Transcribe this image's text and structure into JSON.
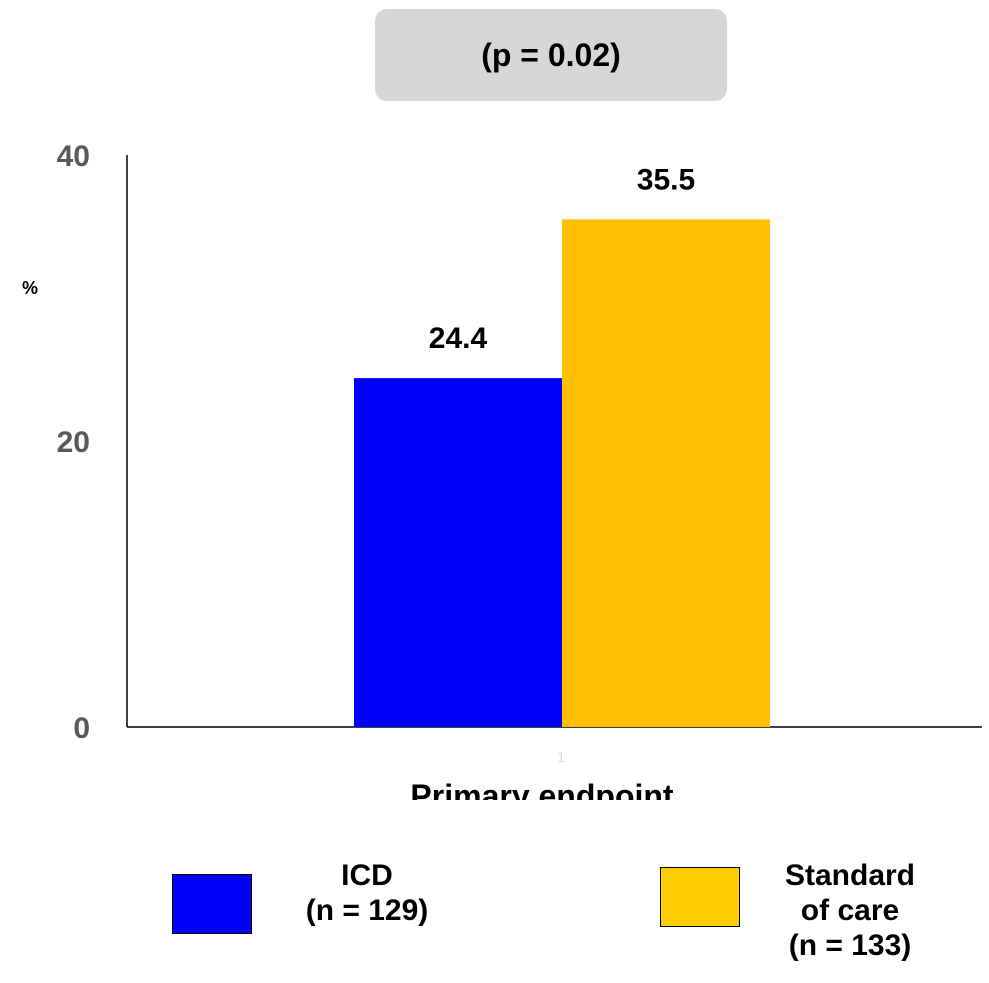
{
  "annotation": "(p = 0.02)",
  "chart_data": {
    "type": "bar",
    "categories": [
      "1"
    ],
    "xlabel": "Primary endpoint",
    "ylabel": "%",
    "ylim": [
      0,
      40
    ],
    "yticks": [
      0,
      20,
      40
    ],
    "grid": false,
    "legend_position": "bottom",
    "series": [
      {
        "name": "ICD\n(n = 129)",
        "values": [
          24.4
        ],
        "color": "#0000ff",
        "data_label": "24.4"
      },
      {
        "name": "Standard\nof care\n(n = 133)",
        "values": [
          35.5
        ],
        "color": "#ffc000",
        "data_label": "35.5"
      }
    ]
  },
  "colors": {
    "axis": "#000000",
    "tick_label": "#595959",
    "legend_icd": "#0000ff",
    "legend_soc": "#ffcc00"
  }
}
